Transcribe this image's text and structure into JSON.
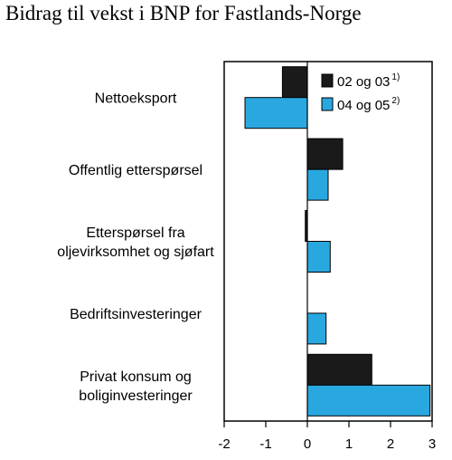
{
  "chart_data": {
    "type": "bar",
    "orientation": "horizontal",
    "title": "Bidrag til vekst i BNP for Fastlands-Norge",
    "xlabel": "",
    "ylabel": "",
    "xlim": [
      -2,
      3
    ],
    "xticks": [
      -2,
      -1,
      0,
      1,
      2,
      3
    ],
    "xtick_labels": [
      "-2",
      "-1",
      "0",
      "1",
      "2",
      "3"
    ],
    "grid": false,
    "legend_position": "top-right",
    "categories": [
      [
        "Nettoeksport"
      ],
      [
        "Offentlig etterspørsel"
      ],
      [
        "Etterspørsel fra",
        "oljevirksomhet og sjøfart"
      ],
      [
        "Bedriftsinvesteringer"
      ],
      [
        "Privat konsum og",
        "boliginvesteringer"
      ]
    ],
    "series": [
      {
        "name": "02 og 03",
        "footnote": "1)",
        "color": "#1a1a1a",
        "values": [
          -0.6,
          0.85,
          -0.05,
          0.0,
          1.55
        ]
      },
      {
        "name": "04 og 05",
        "footnote": "2)",
        "color": "#29a8e0",
        "values": [
          -1.5,
          0.5,
          0.55,
          0.45,
          2.95
        ]
      }
    ]
  }
}
